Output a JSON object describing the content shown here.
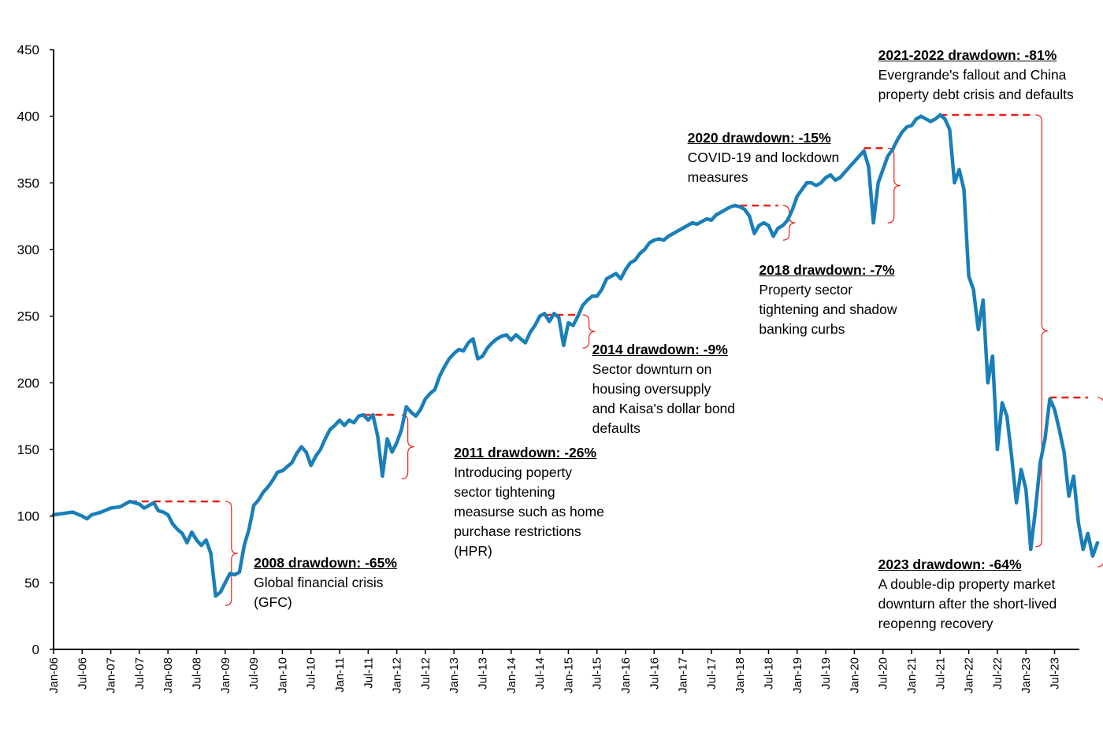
{
  "chart_data": {
    "type": "line",
    "title": "",
    "xlabel": "",
    "ylabel": "",
    "ylim": [
      0,
      450
    ],
    "yticks": [
      0,
      50,
      100,
      150,
      200,
      250,
      300,
      350,
      400,
      450
    ],
    "xticks": [
      "Jan-06",
      "Jul-06",
      "Jan-07",
      "Jul-07",
      "Jan-08",
      "Jul-08",
      "Jan-09",
      "Jul-09",
      "Jan-10",
      "Jul-10",
      "Jan-11",
      "Jul-11",
      "Jan-12",
      "Jul-12",
      "Jan-13",
      "Jul-13",
      "Jan-14",
      "Jul-14",
      "Jan-15",
      "Jul-15",
      "Jan-16",
      "Jul-16",
      "Jan-17",
      "Jul-17",
      "Jan-18",
      "Jul-18",
      "Jan-19",
      "Jul-19",
      "Jan-20",
      "Jul-20",
      "Jan-21",
      "Jul-21",
      "Jan-22",
      "Jul-22",
      "Jan-23",
      "Jul-23"
    ],
    "grid": false,
    "series": [
      {
        "color": "#1a7fb8",
        "points": [
          [
            "Jan-06",
            101
          ],
          [
            "Mar-06",
            102
          ],
          [
            "May-06",
            103
          ],
          [
            "Jul-06",
            100
          ],
          [
            "Aug-06",
            98
          ],
          [
            "Sep-06",
            101
          ],
          [
            "Nov-06",
            103
          ],
          [
            "Jan-07",
            106
          ],
          [
            "Mar-07",
            107
          ],
          [
            "May-07",
            111
          ],
          [
            "Jul-07",
            109
          ],
          [
            "Aug-07",
            106
          ],
          [
            "Sep-07",
            108
          ],
          [
            "Oct-07",
            110
          ],
          [
            "Nov-07",
            104
          ],
          [
            "Dec-07",
            103
          ],
          [
            "Jan-08",
            101
          ],
          [
            "Feb-08",
            94
          ],
          [
            "Mar-08",
            90
          ],
          [
            "Apr-08",
            87
          ],
          [
            "May-08",
            80
          ],
          [
            "Jun-08",
            88
          ],
          [
            "Jul-08",
            82
          ],
          [
            "Aug-08",
            78
          ],
          [
            "Sep-08",
            82
          ],
          [
            "Oct-08",
            72
          ],
          [
            "Nov-08",
            40
          ],
          [
            "Dec-08",
            43
          ],
          [
            "Jan-09",
            50
          ],
          [
            "Feb-09",
            57
          ],
          [
            "Mar-09",
            56
          ],
          [
            "Apr-09",
            58
          ],
          [
            "May-09",
            78
          ],
          [
            "Jun-09",
            90
          ],
          [
            "Jul-09",
            108
          ],
          [
            "Aug-09",
            112
          ],
          [
            "Sep-09",
            118
          ],
          [
            "Oct-09",
            122
          ],
          [
            "Nov-09",
            127
          ],
          [
            "Dec-09",
            133
          ],
          [
            "Jan-10",
            134
          ],
          [
            "Feb-10",
            137
          ],
          [
            "Mar-10",
            140
          ],
          [
            "Apr-10",
            147
          ],
          [
            "May-10",
            152
          ],
          [
            "Jun-10",
            148
          ],
          [
            "Jul-10",
            138
          ],
          [
            "Aug-10",
            145
          ],
          [
            "Sep-10",
            150
          ],
          [
            "Oct-10",
            158
          ],
          [
            "Nov-10",
            165
          ],
          [
            "Dec-10",
            168
          ],
          [
            "Jan-11",
            172
          ],
          [
            "Feb-11",
            168
          ],
          [
            "Mar-11",
            172
          ],
          [
            "Apr-11",
            170
          ],
          [
            "May-11",
            175
          ],
          [
            "Jun-11",
            176
          ],
          [
            "Jul-11",
            172
          ],
          [
            "Aug-11",
            176
          ],
          [
            "Sep-11",
            160
          ],
          [
            "Oct-11",
            130
          ],
          [
            "Nov-11",
            158
          ],
          [
            "Dec-11",
            148
          ],
          [
            "Jan-12",
            155
          ],
          [
            "Feb-12",
            165
          ],
          [
            "Mar-12",
            182
          ],
          [
            "Apr-12",
            178
          ],
          [
            "May-12",
            175
          ],
          [
            "Jun-12",
            180
          ],
          [
            "Jul-12",
            188
          ],
          [
            "Aug-12",
            192
          ],
          [
            "Sep-12",
            195
          ],
          [
            "Oct-12",
            205
          ],
          [
            "Nov-12",
            212
          ],
          [
            "Dec-12",
            218
          ],
          [
            "Jan-13",
            222
          ],
          [
            "Feb-13",
            225
          ],
          [
            "Mar-13",
            224
          ],
          [
            "Apr-13",
            230
          ],
          [
            "May-13",
            233
          ],
          [
            "Jun-13",
            218
          ],
          [
            "Jul-13",
            220
          ],
          [
            "Aug-13",
            226
          ],
          [
            "Sep-13",
            230
          ],
          [
            "Oct-13",
            233
          ],
          [
            "Nov-13",
            235
          ],
          [
            "Dec-13",
            236
          ],
          [
            "Jan-14",
            232
          ],
          [
            "Feb-14",
            236
          ],
          [
            "Mar-14",
            233
          ],
          [
            "Apr-14",
            230
          ],
          [
            "May-14",
            238
          ],
          [
            "Jun-14",
            243
          ],
          [
            "Jul-14",
            250
          ],
          [
            "Aug-14",
            252
          ],
          [
            "Sep-14",
            246
          ],
          [
            "Oct-14",
            252
          ],
          [
            "Nov-14",
            249
          ],
          [
            "Dec-14",
            228
          ],
          [
            "Jan-15",
            245
          ],
          [
            "Feb-15",
            243
          ],
          [
            "Mar-15",
            250
          ],
          [
            "Apr-15",
            258
          ],
          [
            "May-15",
            262
          ],
          [
            "Jun-15",
            265
          ],
          [
            "Jul-15",
            265
          ],
          [
            "Aug-15",
            270
          ],
          [
            "Sep-15",
            278
          ],
          [
            "Oct-15",
            280
          ],
          [
            "Nov-15",
            282
          ],
          [
            "Dec-15",
            278
          ],
          [
            "Jan-16",
            285
          ],
          [
            "Feb-16",
            290
          ],
          [
            "Mar-16",
            292
          ],
          [
            "Apr-16",
            297
          ],
          [
            "May-16",
            300
          ],
          [
            "Jun-16",
            305
          ],
          [
            "Jul-16",
            307
          ],
          [
            "Aug-16",
            308
          ],
          [
            "Sep-16",
            307
          ],
          [
            "Oct-16",
            310
          ],
          [
            "Nov-16",
            312
          ],
          [
            "Dec-16",
            314
          ],
          [
            "Jan-17",
            316
          ],
          [
            "Feb-17",
            318
          ],
          [
            "Mar-17",
            320
          ],
          [
            "Apr-17",
            319
          ],
          [
            "May-17",
            321
          ],
          [
            "Jun-17",
            323
          ],
          [
            "Jul-17",
            322
          ],
          [
            "Aug-17",
            326
          ],
          [
            "Sep-17",
            328
          ],
          [
            "Oct-17",
            330
          ],
          [
            "Nov-17",
            332
          ],
          [
            "Dec-17",
            333
          ],
          [
            "Jan-18",
            332
          ],
          [
            "Feb-18",
            330
          ],
          [
            "Mar-18",
            325
          ],
          [
            "Apr-18",
            312
          ],
          [
            "May-18",
            318
          ],
          [
            "Jun-18",
            320
          ],
          [
            "Jul-18",
            318
          ],
          [
            "Aug-18",
            310
          ],
          [
            "Sep-18",
            316
          ],
          [
            "Oct-18",
            318
          ],
          [
            "Nov-18",
            322
          ],
          [
            "Dec-18",
            330
          ],
          [
            "Jan-19",
            340
          ],
          [
            "Feb-19",
            345
          ],
          [
            "Mar-19",
            350
          ],
          [
            "Apr-19",
            350
          ],
          [
            "May-19",
            348
          ],
          [
            "Jun-19",
            350
          ],
          [
            "Jul-19",
            354
          ],
          [
            "Aug-19",
            356
          ],
          [
            "Sep-19",
            352
          ],
          [
            "Oct-19",
            354
          ],
          [
            "Nov-19",
            358
          ],
          [
            "Dec-19",
            362
          ],
          [
            "Jan-20",
            366
          ],
          [
            "Feb-20",
            370
          ],
          [
            "Mar-20",
            374
          ],
          [
            "Apr-20",
            362
          ],
          [
            "May-20",
            320
          ],
          [
            "Jun-20",
            350
          ],
          [
            "Jul-20",
            360
          ],
          [
            "Aug-20",
            370
          ],
          [
            "Sep-20",
            375
          ],
          [
            "Oct-20",
            382
          ],
          [
            "Nov-20",
            388
          ],
          [
            "Dec-20",
            392
          ],
          [
            "Jan-21",
            393
          ],
          [
            "Feb-21",
            398
          ],
          [
            "Mar-21",
            400
          ],
          [
            "Apr-21",
            398
          ],
          [
            "May-21",
            396
          ],
          [
            "Jun-21",
            398
          ],
          [
            "Jul-21",
            401
          ],
          [
            "Aug-21",
            398
          ],
          [
            "Sep-21",
            390
          ],
          [
            "Oct-21",
            350
          ],
          [
            "Nov-21",
            360
          ],
          [
            "Dec-21",
            345
          ],
          [
            "Jan-22",
            280
          ],
          [
            "Feb-22",
            270
          ],
          [
            "Mar-22",
            240
          ],
          [
            "Apr-22",
            262
          ],
          [
            "May-22",
            200
          ],
          [
            "Jun-22",
            220
          ],
          [
            "Jul-22",
            150
          ],
          [
            "Aug-22",
            185
          ],
          [
            "Sep-22",
            175
          ],
          [
            "Oct-22",
            145
          ],
          [
            "Nov-22",
            110
          ],
          [
            "Dec-22",
            135
          ],
          [
            "Jan-23",
            120
          ],
          [
            "Feb-23",
            75
          ],
          [
            "Mar-23",
            105
          ],
          [
            "Apr-23",
            140
          ],
          [
            "May-23",
            158
          ],
          [
            "Jun-23",
            188
          ],
          [
            "Jul-23",
            180
          ],
          [
            "Aug-23",
            165
          ],
          [
            "Sep-23",
            148
          ],
          [
            "Oct-23",
            115
          ],
          [
            "Nov-23",
            130
          ],
          [
            "Dec-23",
            95
          ],
          [
            "Jan-24",
            75
          ],
          [
            "Feb-24",
            87
          ],
          [
            "Mar-24",
            70
          ],
          [
            "Apr-24",
            80
          ]
        ]
      }
    ],
    "annotations": [
      {
        "title": "2008 drawdown: -65%",
        "text": "Global financial crisis\n(GFC)",
        "peak": [
          "May-07",
          111
        ],
        "peak_end": [
          "Dec-08",
          111
        ],
        "bracket": [
          "Jan-09",
          111,
          33
        ],
        "label_at": [
          "Jul-09",
          72
        ]
      },
      {
        "title": "2011 drawdown: -26%",
        "text": "Introducing poperty\nsector tightening\nmeasurse such as home\npurchase restrictions\n(HPR)",
        "peak": [
          "Jun-11",
          176
        ],
        "peak_end": [
          "Jan-12",
          176
        ],
        "bracket": [
          "Feb-12",
          176,
          128
        ],
        "label_at": [
          "Jan-13",
          155
        ]
      },
      {
        "title": "2014 drawdown: -9%",
        "text": "Sector downturn on\nhousing oversupply\nand Kaisa's dollar bond\ndefaults",
        "peak": [
          "Aug-14",
          251
        ],
        "peak_end": [
          "Mar-15",
          251
        ],
        "bracket": [
          "Apr-15",
          251,
          226
        ],
        "label_at": [
          "Jun-15",
          232
        ]
      },
      {
        "title": "2018 drawdown: -7%",
        "text": "Property sector\ntightening and shadow\nbanking curbs",
        "peak": [
          "Jan-18",
          333
        ],
        "peak_end": [
          "Sep-18",
          333
        ],
        "bracket": [
          "Oct-18",
          333,
          307
        ],
        "label_at": [
          "May-18",
          292
        ]
      },
      {
        "title": "2020 drawdown: -15%",
        "text": "COVID-19 and lockdown\nmeasures",
        "peak": [
          "Mar-20",
          376
        ],
        "peak_end": [
          "Jul-20",
          376
        ],
        "bracket": [
          "Aug-20",
          376,
          320
        ],
        "label_at": [
          "Feb-17",
          391
        ]
      },
      {
        "title": "2021-2022 drawdown: -81%",
        "text": "Evergrande's fallout and China\nproperty debt crisis and defaults",
        "peak": [
          "Jul-21",
          401
        ],
        "peak_end": [
          "Feb-23",
          401
        ],
        "bracket": [
          "Mar-23",
          401,
          77
        ],
        "label_at": [
          "Jun-20",
          453
        ]
      },
      {
        "title": "2023 drawdown: -64%",
        "text": "A double-dip property market\ndownturn after the short-lived\nreopenng recovery",
        "peak": [
          "Jun-23",
          189
        ],
        "peak_end": [
          "Feb-24",
          189
        ],
        "bracket": [
          "Apr-24",
          189,
          62
        ],
        "label_at": [
          "Jun-20",
          71
        ]
      }
    ]
  }
}
